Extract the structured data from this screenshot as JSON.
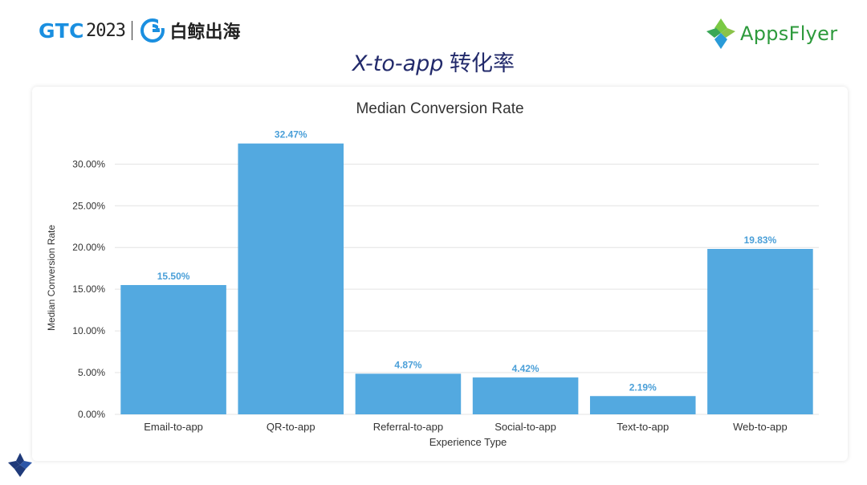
{
  "header": {
    "gtc_text": "GTC",
    "gtc_year": "2023",
    "partner_name": "白鲸出海",
    "brand_name": "AppsFlyer",
    "slide_title_en": "X-to-app",
    "slide_title_zh": " 转化率"
  },
  "colors": {
    "bar": "#53a9e0",
    "data_label": "#4a9fd8",
    "gtc_blue": "#1a8fe0",
    "title_navy": "#222a6b",
    "brand_green": "#2d9a3c"
  },
  "chart_data": {
    "type": "bar",
    "title": "Median Conversion Rate",
    "xlabel": "Experience Type",
    "ylabel": "Median Conversion Rate",
    "categories": [
      "Email-to-app",
      "QR-to-app",
      "Referral-to-app",
      "Social-to-app",
      "Text-to-app",
      "Web-to-app"
    ],
    "values": [
      15.5,
      32.47,
      4.87,
      4.42,
      2.19,
      19.83
    ],
    "data_labels": [
      "15.50%",
      "32.47%",
      "4.87%",
      "4.42%",
      "2.19%",
      "19.83%"
    ],
    "yticks": [
      0,
      5,
      10,
      15,
      20,
      25,
      30
    ],
    "ytick_labels": [
      "0.00%",
      "5.00%",
      "10.00%",
      "15.00%",
      "20.00%",
      "25.00%",
      "30.00%"
    ],
    "ylim": [
      0,
      33.5
    ],
    "grid": true,
    "legend": "none"
  }
}
